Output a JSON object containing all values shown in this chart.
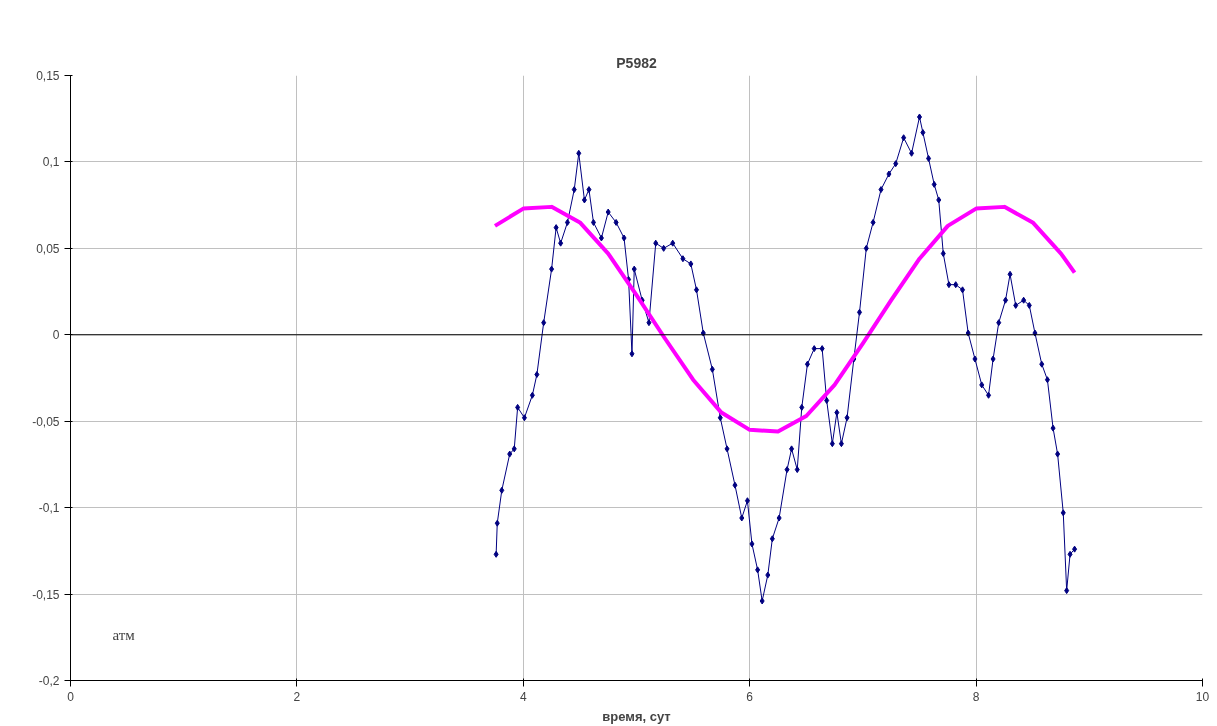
{
  "chart_data": {
    "type": "line",
    "title": "P5982",
    "xlabel": "время, сут",
    "ylabel": "атм",
    "xlim": [
      0,
      10
    ],
    "xticks": [
      0,
      2,
      4,
      6,
      8,
      10
    ],
    "ylim": [
      -0.2,
      0.15
    ],
    "yticks": [
      {
        "value": -0.2,
        "label": "-0,2"
      },
      {
        "value": -0.15,
        "label": "-0,15"
      },
      {
        "value": -0.1,
        "label": "-0,1"
      },
      {
        "value": -0.05,
        "label": "-0,05"
      },
      {
        "value": 0,
        "label": "0"
      },
      {
        "value": 0.05,
        "label": "0,05"
      },
      {
        "value": 0.1,
        "label": "0,1"
      },
      {
        "value": 0.15,
        "label": "0,15"
      }
    ],
    "grid": true,
    "ref_lines": [
      {
        "axis": "y",
        "value": 0,
        "label": null,
        "color": "#000000"
      }
    ],
    "series": [
      {
        "color": "#000080",
        "marker": "diamond",
        "line_style": "solid",
        "x": [
          3.76,
          3.77,
          3.81,
          3.88,
          3.92,
          3.95,
          4.01,
          4.08,
          4.12,
          4.18,
          4.25,
          4.29,
          4.33,
          4.39,
          4.45,
          4.49,
          4.54,
          4.58,
          4.62,
          4.69,
          4.75,
          4.82,
          4.89,
          4.93,
          4.96,
          4.98,
          5.05,
          5.11,
          5.17,
          5.24,
          5.32,
          5.41,
          5.48,
          5.53,
          5.59,
          5.67,
          5.74,
          5.8,
          5.87,
          5.93,
          5.98,
          6.02,
          6.07,
          6.11,
          6.16,
          6.2,
          6.26,
          6.33,
          6.37,
          6.42,
          6.46,
          6.51,
          6.57,
          6.64,
          6.68,
          6.73,
          6.77,
          6.81,
          6.86,
          6.92,
          6.97,
          7.03,
          7.09,
          7.16,
          7.23,
          7.29,
          7.36,
          7.43,
          7.5,
          7.53,
          7.58,
          7.63,
          7.67,
          7.71,
          7.76,
          7.82,
          7.88,
          7.93,
          7.99,
          8.05,
          8.11,
          8.15,
          8.2,
          8.26,
          8.3,
          8.35,
          8.42,
          8.47,
          8.52,
          8.58,
          8.63,
          8.68,
          8.72,
          8.77,
          8.8,
          8.83,
          8.87
        ],
        "values": [
          -0.127,
          -0.109,
          -0.09,
          -0.069,
          -0.066,
          -0.042,
          -0.048,
          -0.035,
          -0.023,
          0.007,
          0.038,
          0.062,
          0.053,
          0.065,
          0.084,
          0.105,
          0.078,
          0.084,
          0.065,
          0.056,
          0.071,
          0.065,
          0.056,
          0.032,
          -0.011,
          0.038,
          0.02,
          0.007,
          0.053,
          0.05,
          0.053,
          0.044,
          0.041,
          0.026,
          0.001,
          -0.02,
          -0.048,
          -0.066,
          -0.087,
          -0.106,
          -0.096,
          -0.121,
          -0.136,
          -0.154,
          -0.139,
          -0.118,
          -0.106,
          -0.078,
          -0.066,
          -0.078,
          -0.042,
          -0.017,
          -0.008,
          -0.008,
          -0.038,
          -0.063,
          -0.045,
          -0.063,
          -0.048,
          -0.014,
          0.013,
          0.05,
          0.065,
          0.084,
          0.093,
          0.099,
          0.114,
          0.105,
          0.126,
          0.117,
          0.102,
          0.087,
          0.078,
          0.047,
          0.029,
          0.029,
          0.026,
          0.001,
          -0.014,
          -0.029,
          -0.035,
          -0.014,
          0.007,
          0.02,
          0.035,
          0.017,
          0.02,
          0.017,
          0.001,
          -0.017,
          -0.026,
          -0.054,
          -0.069,
          -0.103,
          -0.148,
          -0.127,
          -0.124
        ]
      },
      {
        "color": "#ff00ff",
        "marker": "none",
        "line_style": "solid",
        "x": [
          3.75,
          4.0,
          4.25,
          4.5,
          4.75,
          5.0,
          5.25,
          5.5,
          5.75,
          6.0,
          6.25,
          6.5,
          6.75,
          7.0,
          7.25,
          7.5,
          7.75,
          8.0,
          8.25,
          8.5,
          8.75,
          8.87
        ],
        "values": [
          0.063,
          0.073,
          0.074,
          0.065,
          0.047,
          0.023,
          -0.002,
          -0.026,
          -0.045,
          -0.055,
          -0.056,
          -0.047,
          -0.029,
          -0.005,
          0.02,
          0.044,
          0.063,
          0.073,
          0.074,
          0.065,
          0.047,
          0.036
        ]
      }
    ]
  }
}
